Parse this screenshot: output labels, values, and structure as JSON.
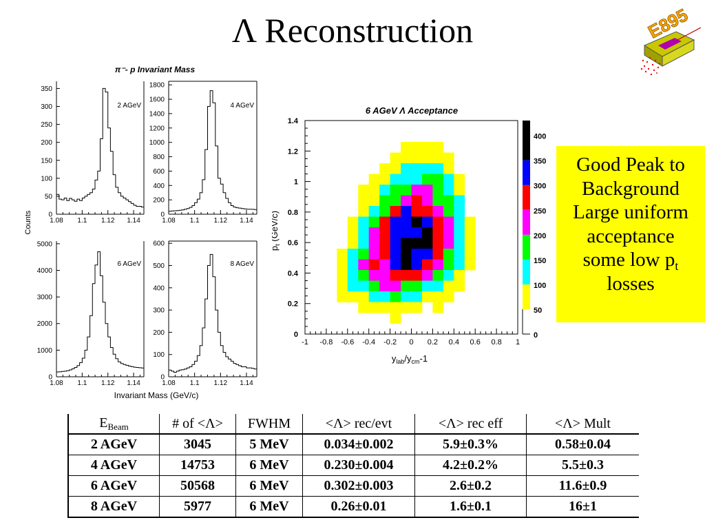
{
  "slide": {
    "title": "Λ Reconstruction",
    "logo": {
      "label": "E895",
      "colors": {
        "text": "#ffa500",
        "detector": "#c8c800",
        "tracks": "#ff0000",
        "core": "#b000b0"
      }
    }
  },
  "note_box": {
    "background": "#ffff00",
    "lines": [
      "Good Peak to",
      "Background",
      "Large uniform",
      "acceptance",
      "some low p",
      "losses"
    ],
    "subscript": "t"
  },
  "summary_table": {
    "headers": [
      {
        "main": "E",
        "sub": "Beam"
      },
      {
        "main": "# of <Λ>"
      },
      {
        "main": "FWHM"
      },
      {
        "main": "<Λ> rec/evt"
      },
      {
        "main": "<Λ> rec eff"
      },
      {
        "main": "<Λ> Mult"
      }
    ],
    "rows": [
      [
        "2 AGeV",
        "3045",
        "5 MeV",
        "0.034±0.002",
        "5.9±0.3%",
        "0.58±0.04"
      ],
      [
        "4 AGeV",
        "14753",
        "6 MeV",
        "0.230±0.004",
        "4.2±0.2%",
        "5.5±0.3"
      ],
      [
        "6 AGeV",
        "50568",
        "6 MeV",
        "0.302±0.003",
        "2.6±0.2",
        "11.6±0.9"
      ],
      [
        "8 AGeV",
        "5977",
        "6 MeV",
        "0.26±0.01",
        "1.6±0.1",
        "16±1"
      ]
    ]
  },
  "chart_data": [
    {
      "type": "line",
      "title": "π⁻- p Invariant Mass",
      "xlabel": "Invariant Mass (GeV/c)",
      "ylabel": "Counts",
      "xlim": [
        1.08,
        1.148
      ],
      "xticks": [
        "1.08",
        "1.1",
        "1.12",
        "1.14"
      ],
      "panels": [
        {
          "name": "2 AGeV",
          "ylim": [
            0,
            370
          ],
          "yticks": [
            0,
            50,
            100,
            150,
            200,
            250,
            300,
            350
          ],
          "x": [
            1.08,
            1.082,
            1.084,
            1.086,
            1.088,
            1.09,
            1.092,
            1.094,
            1.096,
            1.098,
            1.1,
            1.102,
            1.104,
            1.106,
            1.108,
            1.11,
            1.112,
            1.114,
            1.116,
            1.118,
            1.12,
            1.122,
            1.124,
            1.126,
            1.128,
            1.13,
            1.132,
            1.134,
            1.136,
            1.138,
            1.14,
            1.142,
            1.144,
            1.146
          ],
          "values": [
            55,
            42,
            40,
            45,
            38,
            44,
            40,
            36,
            42,
            38,
            45,
            50,
            55,
            60,
            70,
            95,
            120,
            210,
            350,
            340,
            240,
            175,
            110,
            75,
            60,
            50,
            45,
            40,
            35,
            30,
            25,
            22,
            22,
            20
          ]
        },
        {
          "name": "4 AGeV",
          "ylim": [
            0,
            1850
          ],
          "yticks": [
            0,
            200,
            400,
            600,
            800,
            1000,
            1200,
            1400,
            1600,
            1800
          ],
          "x": [
            1.08,
            1.082,
            1.084,
            1.086,
            1.088,
            1.09,
            1.092,
            1.094,
            1.096,
            1.098,
            1.1,
            1.102,
            1.104,
            1.106,
            1.108,
            1.11,
            1.112,
            1.114,
            1.116,
            1.118,
            1.12,
            1.122,
            1.124,
            1.126,
            1.128,
            1.13,
            1.132,
            1.134,
            1.136,
            1.138,
            1.14,
            1.142,
            1.144,
            1.146
          ],
          "values": [
            40,
            45,
            48,
            50,
            55,
            60,
            70,
            80,
            95,
            120,
            160,
            210,
            300,
            480,
            900,
            1500,
            1720,
            1550,
            950,
            500,
            420,
            300,
            220,
            160,
            120,
            100,
            90,
            85,
            80,
            75,
            70,
            70,
            68,
            65
          ]
        },
        {
          "name": "6 AGeV",
          "ylim": [
            0,
            5100
          ],
          "yticks": [
            0,
            1000,
            2000,
            3000,
            4000,
            5000
          ],
          "x": [
            1.08,
            1.082,
            1.084,
            1.086,
            1.088,
            1.09,
            1.092,
            1.094,
            1.096,
            1.098,
            1.1,
            1.102,
            1.104,
            1.106,
            1.108,
            1.11,
            1.112,
            1.114,
            1.116,
            1.118,
            1.12,
            1.122,
            1.124,
            1.126,
            1.128,
            1.13,
            1.132,
            1.134,
            1.136,
            1.138,
            1.14,
            1.142,
            1.144,
            1.146
          ],
          "values": [
            180,
            190,
            200,
            210,
            230,
            260,
            300,
            350,
            420,
            530,
            700,
            1000,
            1500,
            2300,
            3500,
            4200,
            4700,
            3800,
            2800,
            2000,
            1500,
            1100,
            850,
            680,
            560,
            500,
            460,
            430,
            400,
            380,
            360,
            350,
            340,
            330
          ]
        },
        {
          "name": "8 AGeV",
          "ylim": [
            0,
            610
          ],
          "yticks": [
            0,
            100,
            200,
            300,
            400,
            500,
            600
          ],
          "x": [
            1.08,
            1.082,
            1.084,
            1.086,
            1.088,
            1.09,
            1.092,
            1.094,
            1.096,
            1.098,
            1.1,
            1.102,
            1.104,
            1.106,
            1.108,
            1.11,
            1.112,
            1.114,
            1.116,
            1.118,
            1.12,
            1.122,
            1.124,
            1.126,
            1.128,
            1.13,
            1.132,
            1.134,
            1.136,
            1.138,
            1.14,
            1.142,
            1.144,
            1.146
          ],
          "values": [
            30,
            25,
            20,
            25,
            30,
            32,
            35,
            40,
            45,
            55,
            70,
            95,
            140,
            220,
            350,
            500,
            550,
            450,
            300,
            200,
            140,
            110,
            90,
            80,
            70,
            60,
            55,
            50,
            45,
            45,
            40,
            40,
            38,
            35
          ]
        }
      ]
    },
    {
      "type": "heatmap",
      "title": "6 AGeV Λ Acceptance",
      "xlabel": "y_lab/y_cm-1",
      "ylabel": "p_t (GeV/c)",
      "xlim": [
        -1,
        1
      ],
      "ylim": [
        0,
        1.4
      ],
      "xticks": [
        "-1",
        "-0.8",
        "-0.6",
        "-0.4",
        "-0.2",
        "0",
        "0.2",
        "0.4",
        "0.6",
        "0.8",
        "1"
      ],
      "yticks": [
        "0",
        "0.2",
        "0.4",
        "0.6",
        "0.8",
        "1",
        "1.2",
        "1.4"
      ],
      "x_bin_start": -0.7,
      "x_bin_width": 0.1,
      "y_bin_top": 1.26,
      "y_bin_height": 0.07,
      "colorbar": {
        "ticks": [
          0,
          50,
          100,
          150,
          200,
          250,
          300,
          350,
          400
        ],
        "max": 430,
        "levels": [
          {
            "code": "Y",
            "min": 50,
            "max": 100,
            "color": "#ffff00"
          },
          {
            "code": "C",
            "min": 100,
            "max": 150,
            "color": "#00ffff"
          },
          {
            "code": "G",
            "min": 150,
            "max": 200,
            "color": "#00ff00"
          },
          {
            "code": "M",
            "min": 200,
            "max": 250,
            "color": "#ff00ff"
          },
          {
            "code": "R",
            "min": 250,
            "max": 300,
            "color": "#ff0000"
          },
          {
            "code": "B",
            "min": 300,
            "max": 350,
            "color": "#0000ff"
          },
          {
            "code": "K",
            "min": 350,
            "max": 430,
            "color": "#000000"
          }
        ]
      },
      "rows": [
        "......YYYY....",
        ".....YYYYYY...",
        "....YYCCCCY...",
        "...YYCCCGGCY..",
        "..YYCGGMMGCY..",
        "..YYGGMRMGGC..",
        "..YCGRBRRMGC..",
        ".YCGRBBKBRMCY.",
        ".YCMRBBBKRMCY.",
        ".YCMRBKKKRMCY.",
        "YCGMRBKBBRGCY.",
        "YCMRMBKBRMGCY.",
        "YCGMMRRRMGCY..",
        "YCCGMMGGCCYY..",
        "YYYCCGCCYYY...",
        "..YYYYYY.Y....",
        ".....Y........"
      ]
    }
  ]
}
